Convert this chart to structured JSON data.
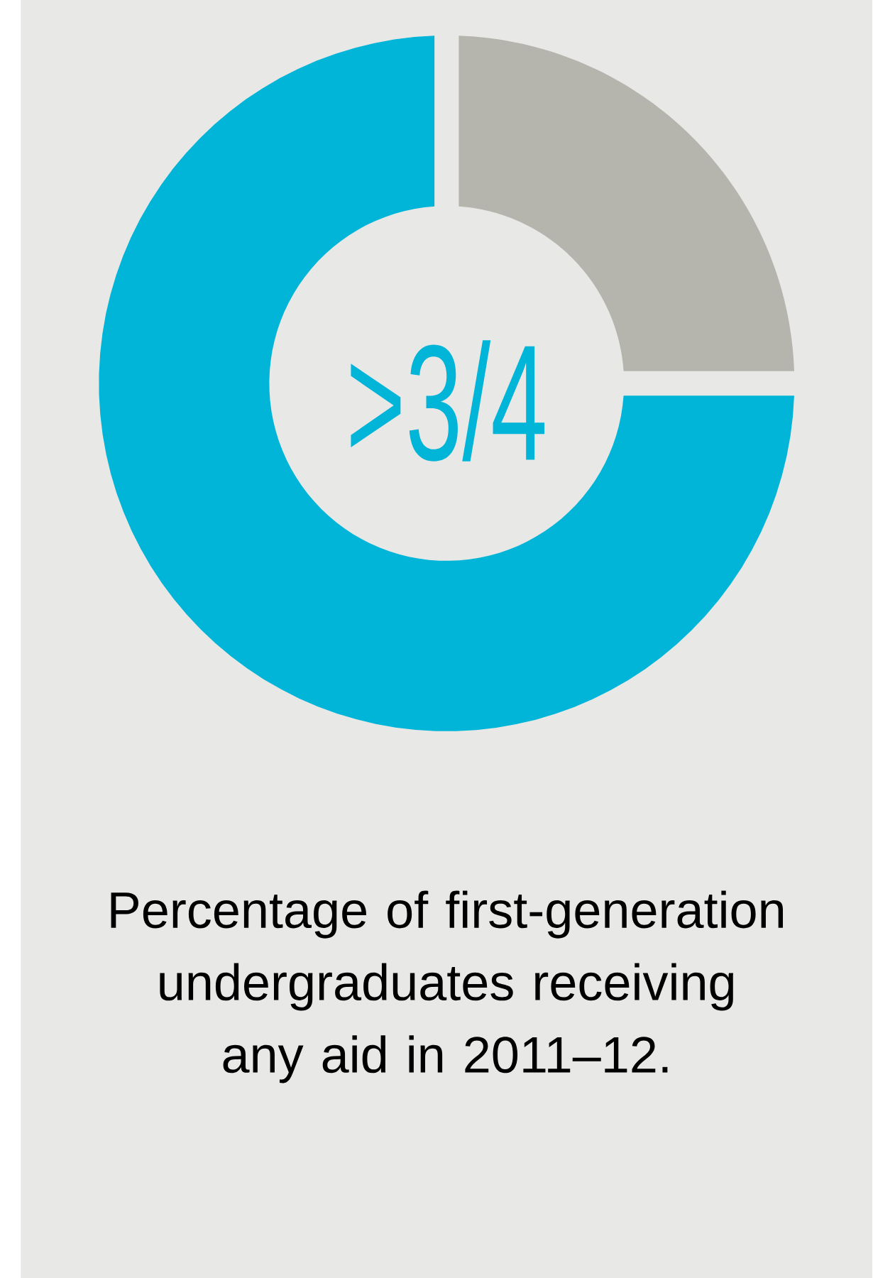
{
  "chart_data": {
    "type": "donut",
    "title": "Percentage of first-generation undergraduates receiving any aid in 2011–12.",
    "categories": [
      null,
      null
    ],
    "values": [
      25,
      75
    ],
    "colors": [
      "#b5b5ad",
      "#00b5d8"
    ],
    "annotations": [
      ">3/4"
    ]
  }
}
